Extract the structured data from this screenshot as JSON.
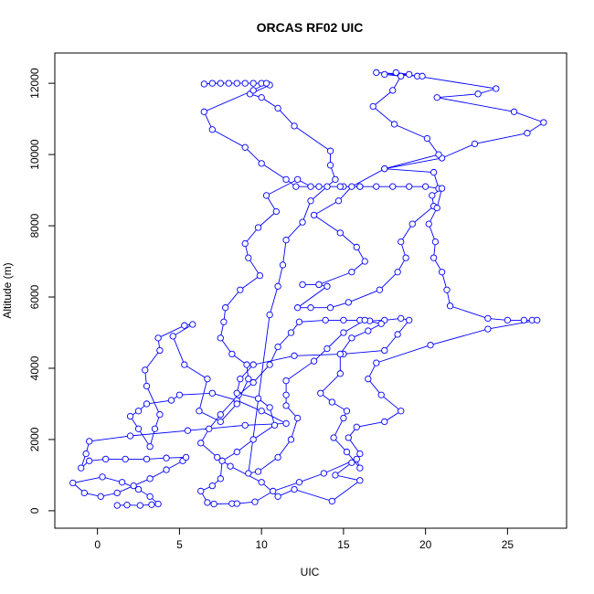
{
  "chart_data": {
    "type": "scatter",
    "mode": "points-and-lines",
    "title": "ORCAS RF02 UIC",
    "x_label": "UIC",
    "y_label": "Altitude (m)",
    "color": "#0000ff",
    "xlim": [
      -2.6,
      28.6
    ],
    "ylim": [
      -490,
      12850
    ],
    "xticks": [
      0,
      5,
      10,
      15,
      20,
      25
    ],
    "yticks": [
      0,
      2000,
      4000,
      6000,
      8000,
      10000,
      12000
    ],
    "x": [
      1.2,
      1.8,
      2.6,
      3.3,
      3.7,
      3.2,
      2.5,
      1.5,
      0.3,
      -1.5,
      -0.8,
      0.2,
      1.2,
      2.2,
      3.2,
      4.2,
      5.2,
      5.4,
      4.2,
      3,
      1.7,
      0.5,
      -0.5,
      -1,
      -0.7,
      -0.5,
      2,
      5.5,
      9,
      11.5,
      10,
      8.5,
      7,
      5,
      4.5,
      3,
      2.5,
      2,
      2.5,
      3.2,
      3.5,
      3.8,
      3,
      2.9,
      3.8,
      3.7,
      5.3,
      5.8,
      4.6,
      5.3,
      6.7,
      6.2,
      7.5,
      8.5,
      9.2,
      9.1,
      8.2,
      7.5,
      7.7,
      7.8,
      8.7,
      9.9,
      9.2,
      9,
      9.8,
      10.9,
      10.3,
      12.2,
      13,
      14,
      15,
      16,
      17,
      18,
      19,
      20,
      20.8,
      20.5,
      17.5,
      21,
      23,
      26.2,
      27.2,
      25.4,
      20.7,
      23.2,
      24.3,
      19.5,
      18.2,
      19,
      17,
      19.8,
      17.5,
      18.5,
      18,
      16.8,
      18.1,
      20.1,
      20.8,
      17.5,
      15.5,
      14.7,
      13.2,
      14.8,
      15.8,
      16.3,
      15.5,
      13.5,
      12.5,
      13.5,
      14,
      12.2,
      13,
      14.2,
      15.3,
      17.2,
      18.3,
      18.8,
      18.5,
      19.2,
      20.5,
      20.4,
      21,
      20.7,
      20.2,
      20.6,
      20.5,
      21,
      21.3,
      21.5,
      23.8,
      25,
      26,
      26.5,
      26.8,
      23.8,
      20.3,
      17,
      16.5,
      17.3,
      18.5,
      17.5,
      15.8,
      15.3,
      16,
      15.5,
      14.5,
      16,
      14.3,
      12,
      11,
      10,
      8.1,
      7.3,
      6.3,
      6.8,
      7.5,
      8.6,
      9.5,
      10.5,
      11,
      11.8,
      12.3,
      13.9,
      15,
      16,
      16.6,
      17.5,
      18.5,
      19,
      18.3,
      17.5,
      15,
      12,
      9.5,
      8.7,
      8.5,
      9.8,
      10.5,
      10.8,
      9.5,
      8.5,
      7.6,
      7.5,
      7,
      6.3,
      6.7,
      7.1,
      8.2,
      8.5,
      9.6,
      10.7,
      12.3,
      13.8,
      15.8,
      16,
      15.2,
      14.4,
      15,
      15.2,
      14.3,
      13.6,
      14.8,
      14.8,
      15.5,
      16.5,
      17.3,
      16.3,
      15,
      14,
      13.2,
      11.5,
      11.5,
      11.5,
      12.2,
      11.8,
      11,
      9.8,
      9.2,
      10.5,
      11,
      11.3,
      11.5,
      12.5,
      13,
      14.5,
      14.2,
      14.2,
      12,
      11,
      10,
      9.3,
      10.5,
      10,
      9,
      8,
      7,
      6.5,
      7.5,
      8.5,
      9.5,
      10.3,
      9.5,
      6.5,
      7,
      9,
      10,
      11.5,
      12.1,
      13.5,
      14.8,
      16
    ],
    "y": [
      150,
      160,
      150,
      170,
      190,
      400,
      600,
      800,
      950,
      780,
      500,
      400,
      500,
      700,
      900,
      1150,
      1400,
      1500,
      1480,
      1450,
      1450,
      1450,
      1400,
      1200,
      1600,
      1950,
      2100,
      2250,
      2400,
      2450,
      2800,
      3100,
      3300,
      3250,
      3100,
      3000,
      2800,
      2650,
      2300,
      1800,
      2300,
      2700,
      3500,
      3950,
      4500,
      4850,
      5200,
      5230,
      4900,
      4100,
      3700,
      2800,
      2500,
      3000,
      3700,
      4100,
      4400,
      4850,
      5300,
      5700,
      6200,
      6600,
      7100,
      7500,
      7950,
      8400,
      8850,
      9300,
      9100,
      9100,
      9100,
      9100,
      9100,
      9100,
      9100,
      9100,
      9050,
      9500,
      9600,
      9900,
      10300,
      10600,
      10900,
      11200,
      11600,
      11700,
      11850,
      12200,
      12300,
      12250,
      12300,
      12200,
      12250,
      12200,
      11800,
      11350,
      10850,
      10450,
      10000,
      9600,
      9100,
      8700,
      8300,
      7800,
      7400,
      7000,
      6700,
      6350,
      6350,
      6350,
      6300,
      5700,
      5700,
      5700,
      5850,
      6200,
      6700,
      7100,
      7550,
      8050,
      8550,
      8850,
      9050,
      8500,
      8050,
      7550,
      7100,
      6700,
      6200,
      5750,
      5400,
      5350,
      5350,
      5350,
      5350,
      5100,
      4650,
      4150,
      3700,
      3250,
      2800,
      2500,
      2350,
      2050,
      1600,
      1350,
      1000,
      850,
      270,
      600,
      400,
      800,
      1250,
      1500,
      1900,
      2300,
      2700,
      3250,
      3600,
      4100,
      4600,
      5000,
      5300,
      5350,
      5350,
      5350,
      5330,
      5350,
      5400,
      5350,
      4950,
      4500,
      4400,
      4350,
      4100,
      3700,
      3300,
      3150,
      2900,
      2400,
      2000,
      1650,
      1400,
      900,
      700,
      550,
      230,
      190,
      200,
      200,
      250,
      550,
      800,
      1050,
      1450,
      1200,
      1650,
      2050,
      2600,
      2800,
      3050,
      3300,
      3850,
      4400,
      4850,
      5050,
      5250,
      5350,
      5000,
      4550,
      4200,
      3650,
      3250,
      2950,
      2600,
      2000,
      1500,
      1100,
      1050,
      5500,
      6300,
      6900,
      7600,
      8100,
      8700,
      9300,
      9700,
      10100,
      10800,
      11300,
      11600,
      11700,
      11950,
      12000,
      12000,
      12000,
      12000,
      11980,
      12000,
      12000,
      12000,
      12000,
      11800,
      11200,
      10700,
      10200,
      9750,
      9300,
      9100,
      9100,
      9100,
      9100
    ]
  }
}
